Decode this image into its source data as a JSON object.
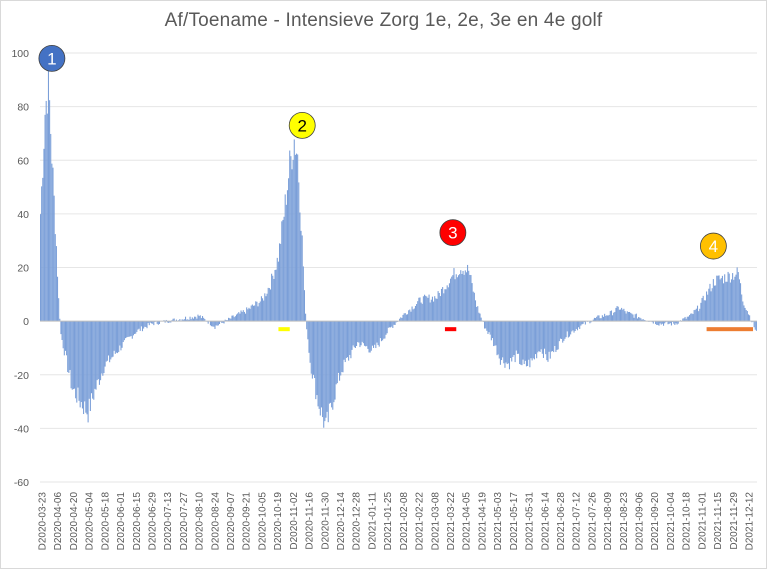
{
  "chart_data": {
    "type": "bar",
    "title": "Af/Toename - Intensieve Zorg 1e, 2e, 3e en 4e golf",
    "xlabel": "",
    "ylabel": "",
    "ylim": [
      -60,
      100
    ],
    "yticks": [
      "-60",
      "-40",
      "-20",
      "0",
      "20",
      "40",
      "60",
      "80",
      "100"
    ],
    "grid": "horizontal",
    "bar_color": "#7b9fd8",
    "date_range": [
      "2020-03-23",
      "2021-12-15"
    ],
    "x_tick_labels": [
      "D2020-03-23",
      "D2020-04-06",
      "D2020-04-20",
      "D2020-05-04",
      "D2020-05-18",
      "D2020-06-01",
      "D2020-06-15",
      "D2020-06-29",
      "D2020-07-13",
      "D2020-07-27",
      "D2020-08-10",
      "D2020-08-24",
      "D2020-09-07",
      "D2020-09-21",
      "D2020-10-05",
      "D2020-10-19",
      "D2020-11-02",
      "D2020-11-16",
      "D2020-11-30",
      "D2020-12-14",
      "D2020-12-28",
      "D2021-01-11",
      "D2021-01-25",
      "D2021-02-08",
      "D2021-02-22",
      "D2021-03-08",
      "D2021-03-22",
      "D2021-04-05",
      "D2021-04-19",
      "D2021-05-03",
      "D2021-05-17",
      "D2021-05-31",
      "D2021-06-14",
      "D2021-06-28",
      "D2021-07-12",
      "D2021-07-26",
      "D2021-08-09",
      "D2021-08-23",
      "D2021-09-06",
      "D2021-09-20",
      "D2021-10-04",
      "D2021-10-18",
      "D2021-11-01",
      "D2021-11-15",
      "D2021-11-29",
      "D2021-12-12"
    ],
    "profile_points": [
      [
        "2020-03-23",
        40
      ],
      [
        "2020-03-27",
        78
      ],
      [
        "2020-03-30",
        90
      ],
      [
        "2020-04-02",
        62
      ],
      [
        "2020-04-06",
        28
      ],
      [
        "2020-04-08",
        8
      ],
      [
        "2020-04-10",
        -5
      ],
      [
        "2020-04-15",
        -15
      ],
      [
        "2020-04-20",
        -25
      ],
      [
        "2020-04-27",
        -30
      ],
      [
        "2020-05-04",
        -34
      ],
      [
        "2020-05-10",
        -26
      ],
      [
        "2020-05-18",
        -17
      ],
      [
        "2020-06-01",
        -10
      ],
      [
        "2020-06-15",
        -4
      ],
      [
        "2020-06-29",
        -1
      ],
      [
        "2020-07-13",
        0
      ],
      [
        "2020-07-27",
        1
      ],
      [
        "2020-08-10",
        2
      ],
      [
        "2020-08-24",
        -2
      ],
      [
        "2020-09-07",
        1
      ],
      [
        "2020-09-21",
        4
      ],
      [
        "2020-10-05",
        8
      ],
      [
        "2020-10-12",
        14
      ],
      [
        "2020-10-19",
        24
      ],
      [
        "2020-10-24",
        40
      ],
      [
        "2020-10-29",
        58
      ],
      [
        "2020-11-02",
        68
      ],
      [
        "2020-11-05",
        62
      ],
      [
        "2020-11-09",
        30
      ],
      [
        "2020-11-12",
        2
      ],
      [
        "2020-11-16",
        -15
      ],
      [
        "2020-11-23",
        -30
      ],
      [
        "2020-11-30",
        -40
      ],
      [
        "2020-12-07",
        -28
      ],
      [
        "2020-12-14",
        -18
      ],
      [
        "2020-12-28",
        -8
      ],
      [
        "2021-01-11",
        -11
      ],
      [
        "2021-01-25",
        -3
      ],
      [
        "2021-02-08",
        3
      ],
      [
        "2021-02-22",
        8
      ],
      [
        "2021-03-08",
        9
      ],
      [
        "2021-03-15",
        13
      ],
      [
        "2021-03-22",
        17
      ],
      [
        "2021-03-29",
        20
      ],
      [
        "2021-04-05",
        19
      ],
      [
        "2021-04-12",
        6
      ],
      [
        "2021-04-19",
        -2
      ],
      [
        "2021-04-26",
        -7
      ],
      [
        "2021-05-03",
        -14
      ],
      [
        "2021-05-10",
        -16
      ],
      [
        "2021-05-17",
        -13
      ],
      [
        "2021-05-24",
        -17
      ],
      [
        "2021-05-31",
        -15
      ],
      [
        "2021-06-07",
        -10
      ],
      [
        "2021-06-14",
        -14
      ],
      [
        "2021-06-28",
        -6
      ],
      [
        "2021-07-12",
        -2
      ],
      [
        "2021-07-26",
        1
      ],
      [
        "2021-08-09",
        3
      ],
      [
        "2021-08-16",
        5
      ],
      [
        "2021-08-23",
        3
      ],
      [
        "2021-09-06",
        1
      ],
      [
        "2021-09-20",
        -1
      ],
      [
        "2021-10-04",
        -1
      ],
      [
        "2021-10-18",
        2
      ],
      [
        "2021-10-25",
        5
      ],
      [
        "2021-11-01",
        10
      ],
      [
        "2021-11-08",
        15
      ],
      [
        "2021-11-15",
        16
      ],
      [
        "2021-11-22",
        17
      ],
      [
        "2021-11-29",
        18
      ],
      [
        "2021-12-03",
        8
      ],
      [
        "2021-12-08",
        3
      ],
      [
        "2021-12-12",
        -1
      ],
      [
        "2021-12-15",
        -4
      ]
    ],
    "annotations": [
      {
        "label": "1",
        "fill": "#4472c4",
        "text_color": "#ffffff",
        "date": "2020-04-02",
        "value": 98
      },
      {
        "label": "2",
        "fill": "#ffff00",
        "text_color": "#000000",
        "date": "2020-11-09",
        "value": 73
      },
      {
        "label": "3",
        "fill": "#ff0000",
        "text_color": "#ffffff",
        "date": "2021-03-22",
        "value": 33
      },
      {
        "label": "4",
        "fill": "#ffc000",
        "text_color": "#ffffff",
        "date": "2021-11-07",
        "value": 28
      }
    ],
    "markers": [
      {
        "color": "#ffff00",
        "start": "2020-10-19",
        "end": "2020-10-29",
        "value": -3
      },
      {
        "color": "#ff0000",
        "start": "2021-03-15",
        "end": "2021-03-25",
        "value": -3
      },
      {
        "color": "#ed7d31",
        "start": "2021-11-01",
        "end": "2021-12-12",
        "value": -3
      }
    ]
  }
}
